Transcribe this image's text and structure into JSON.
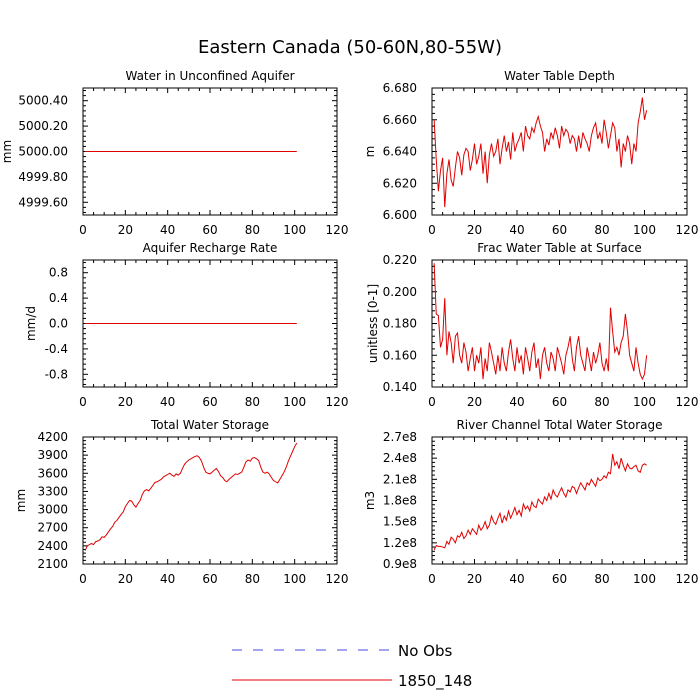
{
  "title": "Eastern Canada (50-60N,80-55W)",
  "legend": [
    {
      "label": "No Obs",
      "color": "#4a4ae0",
      "dash": true
    },
    {
      "label": "1850_148",
      "color": "#e00000",
      "dash": false
    }
  ],
  "chart_data": [
    {
      "type": "line",
      "title": "Water in Unconfined Aquifer",
      "ylabel": "mm",
      "xlabel": "",
      "xlim": [
        0,
        120
      ],
      "ylim": [
        4999.5,
        5000.5
      ],
      "xticks": [
        "0",
        "20",
        "40",
        "60",
        "80",
        "100",
        "120"
      ],
      "yticks": [
        "4999.60",
        "4999.80",
        "5000.00",
        "5000.20",
        "5000.40"
      ],
      "series": [
        {
          "name": "1850_148",
          "color": "#e00000",
          "x": [
            1,
            101
          ],
          "y": [
            5000.0,
            5000.0
          ]
        }
      ]
    },
    {
      "type": "line",
      "title": "Water Table Depth",
      "ylabel": "m",
      "xlabel": "",
      "xlim": [
        0,
        120
      ],
      "ylim": [
        6.6,
        6.68
      ],
      "xticks": [
        "0",
        "20",
        "40",
        "60",
        "80",
        "100",
        "120"
      ],
      "yticks": [
        "6.600",
        "6.620",
        "6.640",
        "6.660",
        "6.680"
      ],
      "series": [
        {
          "name": "1850_148",
          "color": "#e00000",
          "x": [
            1,
            2,
            3,
            4,
            5,
            6,
            7,
            8,
            9,
            10,
            11,
            12,
            13,
            14,
            15,
            16,
            17,
            18,
            19,
            20,
            21,
            22,
            23,
            24,
            25,
            26,
            27,
            28,
            29,
            30,
            31,
            32,
            33,
            34,
            35,
            36,
            37,
            38,
            39,
            40,
            41,
            42,
            43,
            44,
            45,
            46,
            47,
            48,
            49,
            50,
            51,
            52,
            53,
            54,
            55,
            56,
            57,
            58,
            59,
            60,
            61,
            62,
            63,
            64,
            65,
            66,
            67,
            68,
            69,
            70,
            71,
            72,
            73,
            74,
            75,
            76,
            77,
            78,
            79,
            80,
            81,
            82,
            83,
            84,
            85,
            86,
            87,
            88,
            89,
            90,
            91,
            92,
            93,
            94,
            95,
            96,
            97,
            98,
            99,
            100,
            101
          ],
          "y": [
            6.66,
            6.635,
            6.615,
            6.628,
            6.636,
            6.605,
            6.626,
            6.635,
            6.622,
            6.618,
            6.63,
            6.64,
            6.636,
            6.625,
            6.638,
            6.642,
            6.64,
            6.628,
            6.635,
            6.645,
            6.632,
            6.637,
            6.645,
            6.626,
            6.64,
            6.62,
            6.638,
            6.645,
            6.637,
            6.64,
            6.648,
            6.632,
            6.642,
            6.65,
            6.64,
            6.646,
            6.635,
            6.652,
            6.64,
            6.645,
            6.648,
            6.652,
            6.64,
            6.656,
            6.65,
            6.648,
            6.655,
            6.652,
            6.658,
            6.662,
            6.656,
            6.652,
            6.64,
            6.648,
            6.644,
            6.652,
            6.648,
            6.655,
            6.65,
            6.642,
            6.656,
            6.65,
            6.654,
            6.652,
            6.645,
            6.65,
            6.648,
            6.64,
            6.65,
            6.642,
            6.652,
            6.648,
            6.645,
            6.64,
            6.65,
            6.655,
            6.658,
            6.648,
            6.652,
            6.645,
            6.66,
            6.652,
            6.642,
            6.65,
            6.658,
            6.655,
            6.64,
            6.648,
            6.63,
            6.645,
            6.64,
            6.65,
            6.645,
            6.632,
            6.645,
            6.64,
            6.658,
            6.665,
            6.674,
            6.66,
            6.666
          ]
        }
      ]
    },
    {
      "type": "line",
      "title": "Aquifer Recharge Rate",
      "ylabel": "mm/d",
      "xlabel": "",
      "xlim": [
        0,
        120
      ],
      "ylim": [
        -1.0,
        1.0
      ],
      "xticks": [
        "0",
        "20",
        "40",
        "60",
        "80",
        "100",
        "120"
      ],
      "yticks": [
        "-0.8",
        "-0.4",
        "0.0",
        "0.4",
        "0.8"
      ],
      "series": [
        {
          "name": "1850_148",
          "color": "#e00000",
          "x": [
            1,
            101
          ],
          "y": [
            0.0,
            0.0
          ]
        }
      ]
    },
    {
      "type": "line",
      "title": "Frac Water Table at Surface",
      "ylabel": "unitless [0-1]",
      "xlabel": "",
      "xlim": [
        0,
        120
      ],
      "ylim": [
        0.14,
        0.22
      ],
      "xticks": [
        "0",
        "20",
        "40",
        "60",
        "80",
        "100",
        "120"
      ],
      "yticks": [
        "0.140",
        "0.160",
        "0.180",
        "0.200",
        "0.220"
      ],
      "series": [
        {
          "name": "1850_148",
          "color": "#e00000",
          "x": [
            1,
            2,
            3,
            4,
            5,
            6,
            7,
            8,
            9,
            10,
            11,
            12,
            13,
            14,
            15,
            16,
            17,
            18,
            19,
            20,
            21,
            22,
            23,
            24,
            25,
            26,
            27,
            28,
            29,
            30,
            31,
            32,
            33,
            34,
            35,
            36,
            37,
            38,
            39,
            40,
            41,
            42,
            43,
            44,
            45,
            46,
            47,
            48,
            49,
            50,
            51,
            52,
            53,
            54,
            55,
            56,
            57,
            58,
            59,
            60,
            61,
            62,
            63,
            64,
            65,
            66,
            67,
            68,
            69,
            70,
            71,
            72,
            73,
            74,
            75,
            76,
            77,
            78,
            79,
            80,
            81,
            82,
            83,
            84,
            85,
            86,
            87,
            88,
            89,
            90,
            91,
            92,
            93,
            94,
            95,
            96,
            97,
            98,
            99,
            100,
            101
          ],
          "y": [
            0.218,
            0.186,
            0.185,
            0.165,
            0.17,
            0.196,
            0.16,
            0.175,
            0.168,
            0.155,
            0.172,
            0.174,
            0.16,
            0.155,
            0.168,
            0.162,
            0.15,
            0.158,
            0.165,
            0.15,
            0.16,
            0.155,
            0.165,
            0.145,
            0.158,
            0.15,
            0.168,
            0.162,
            0.155,
            0.148,
            0.16,
            0.15,
            0.165,
            0.155,
            0.15,
            0.162,
            0.17,
            0.158,
            0.15,
            0.165,
            0.155,
            0.16,
            0.148,
            0.165,
            0.158,
            0.15,
            0.162,
            0.168,
            0.152,
            0.158,
            0.145,
            0.16,
            0.165,
            0.155,
            0.15,
            0.162,
            0.158,
            0.15,
            0.165,
            0.16,
            0.155,
            0.148,
            0.16,
            0.165,
            0.172,
            0.158,
            0.15,
            0.165,
            0.172,
            0.16,
            0.155,
            0.15,
            0.165,
            0.158,
            0.15,
            0.162,
            0.155,
            0.16,
            0.168,
            0.155,
            0.15,
            0.158,
            0.15,
            0.19,
            0.175,
            0.162,
            0.165,
            0.16,
            0.168,
            0.172,
            0.186,
            0.175,
            0.16,
            0.155,
            0.15,
            0.165,
            0.155,
            0.148,
            0.145,
            0.148,
            0.16
          ]
        }
      ]
    },
    {
      "type": "line",
      "title": "Total Water Storage",
      "ylabel": "mm",
      "xlabel": "",
      "xlim": [
        0,
        120
      ],
      "ylim": [
        2100,
        4200
      ],
      "xticks": [
        "0",
        "20",
        "40",
        "60",
        "80",
        "100",
        "120"
      ],
      "yticks": [
        "2100",
        "2400",
        "2700",
        "3000",
        "3300",
        "3600",
        "3900",
        "4200"
      ],
      "series": [
        {
          "name": "1850_148",
          "color": "#e00000",
          "x": [
            1,
            2,
            3,
            4,
            5,
            6,
            7,
            8,
            9,
            10,
            11,
            12,
            13,
            14,
            15,
            16,
            17,
            18,
            19,
            20,
            21,
            22,
            23,
            24,
            25,
            26,
            27,
            28,
            29,
            30,
            31,
            32,
            33,
            34,
            35,
            36,
            37,
            38,
            39,
            40,
            41,
            42,
            43,
            44,
            45,
            46,
            47,
            48,
            49,
            50,
            51,
            52,
            53,
            54,
            55,
            56,
            57,
            58,
            59,
            60,
            61,
            62,
            63,
            64,
            65,
            66,
            67,
            68,
            69,
            70,
            71,
            72,
            73,
            74,
            75,
            76,
            77,
            78,
            79,
            80,
            81,
            82,
            83,
            84,
            85,
            86,
            87,
            88,
            89,
            90,
            91,
            92,
            93,
            94,
            95,
            96,
            97,
            98,
            99,
            100,
            101
          ],
          "y": [
            2320,
            2400,
            2420,
            2440,
            2420,
            2470,
            2480,
            2500,
            2550,
            2540,
            2580,
            2630,
            2680,
            2720,
            2790,
            2820,
            2870,
            2920,
            2960,
            3050,
            3100,
            3150,
            3140,
            3080,
            3040,
            3100,
            3150,
            3250,
            3310,
            3330,
            3310,
            3350,
            3400,
            3450,
            3460,
            3480,
            3500,
            3540,
            3560,
            3580,
            3600,
            3570,
            3550,
            3590,
            3570,
            3600,
            3680,
            3750,
            3790,
            3820,
            3840,
            3860,
            3880,
            3890,
            3860,
            3800,
            3700,
            3620,
            3600,
            3590,
            3620,
            3650,
            3680,
            3630,
            3560,
            3530,
            3480,
            3460,
            3500,
            3530,
            3560,
            3590,
            3580,
            3600,
            3620,
            3700,
            3790,
            3820,
            3800,
            3850,
            3860,
            3840,
            3810,
            3700,
            3620,
            3600,
            3620,
            3590,
            3530,
            3480,
            3460,
            3440,
            3500,
            3560,
            3620,
            3700,
            3800,
            3880,
            3960,
            4040,
            4100
          ]
        }
      ]
    },
    {
      "type": "line",
      "title": "River Channel Total Water Storage",
      "ylabel": "m3",
      "xlabel": "",
      "xlim": [
        0,
        120
      ],
      "ylim": [
        90000000.0,
        270000000.0
      ],
      "xticks": [
        "0",
        "20",
        "40",
        "60",
        "80",
        "100",
        "120"
      ],
      "yticks": [
        "0.9e8",
        "1.2e8",
        "1.5e8",
        "1.8e8",
        "2.1e8",
        "2.4e8",
        "2.7e8"
      ],
      "series": [
        {
          "name": "1850_148",
          "color": "#e00000",
          "x": [
            1,
            2,
            3,
            4,
            5,
            6,
            7,
            8,
            9,
            10,
            11,
            12,
            13,
            14,
            15,
            16,
            17,
            18,
            19,
            20,
            21,
            22,
            23,
            24,
            25,
            26,
            27,
            28,
            29,
            30,
            31,
            32,
            33,
            34,
            35,
            36,
            37,
            38,
            39,
            40,
            41,
            42,
            43,
            44,
            45,
            46,
            47,
            48,
            49,
            50,
            51,
            52,
            53,
            54,
            55,
            56,
            57,
            58,
            59,
            60,
            61,
            62,
            63,
            64,
            65,
            66,
            67,
            68,
            69,
            70,
            71,
            72,
            73,
            74,
            75,
            76,
            77,
            78,
            79,
            80,
            81,
            82,
            83,
            84,
            85,
            86,
            87,
            88,
            89,
            90,
            91,
            92,
            93,
            94,
            95,
            96,
            97,
            98,
            99,
            100,
            101
          ],
          "y": [
            110000000.0,
            116000000.0,
            115000000.0,
            115000000.0,
            114000000.0,
            113000000.0,
            122000000.0,
            118000000.0,
            128000000.0,
            125000000.0,
            120000000.0,
            130000000.0,
            128000000.0,
            135000000.0,
            126000000.0,
            130000000.0,
            138000000.0,
            132000000.0,
            140000000.0,
            136000000.0,
            132000000.0,
            145000000.0,
            138000000.0,
            142000000.0,
            150000000.0,
            140000000.0,
            145000000.0,
            158000000.0,
            150000000.0,
            146000000.0,
            155000000.0,
            162000000.0,
            148000000.0,
            158000000.0,
            152000000.0,
            165000000.0,
            155000000.0,
            162000000.0,
            170000000.0,
            160000000.0,
            166000000.0,
            158000000.0,
            175000000.0,
            168000000.0,
            172000000.0,
            165000000.0,
            178000000.0,
            172000000.0,
            170000000.0,
            182000000.0,
            178000000.0,
            175000000.0,
            185000000.0,
            180000000.0,
            190000000.0,
            182000000.0,
            195000000.0,
            188000000.0,
            185000000.0,
            192000000.0,
            198000000.0,
            190000000.0,
            185000000.0,
            195000000.0,
            192000000.0,
            200000000.0,
            198000000.0,
            190000000.0,
            198000000.0,
            205000000.0,
            200000000.0,
            195000000.0,
            205000000.0,
            202000000.0,
            210000000.0,
            205000000.0,
            200000000.0,
            212000000.0,
            208000000.0,
            210000000.0,
            215000000.0,
            212000000.0,
            220000000.0,
            218000000.0,
            246000000.0,
            230000000.0,
            235000000.0,
            225000000.0,
            240000000.0,
            230000000.0,
            222000000.0,
            232000000.0,
            226000000.0,
            225000000.0,
            228000000.0,
            230000000.0,
            222000000.0,
            220000000.0,
            230000000.0,
            232000000.0,
            230000000.0
          ]
        }
      ]
    }
  ]
}
